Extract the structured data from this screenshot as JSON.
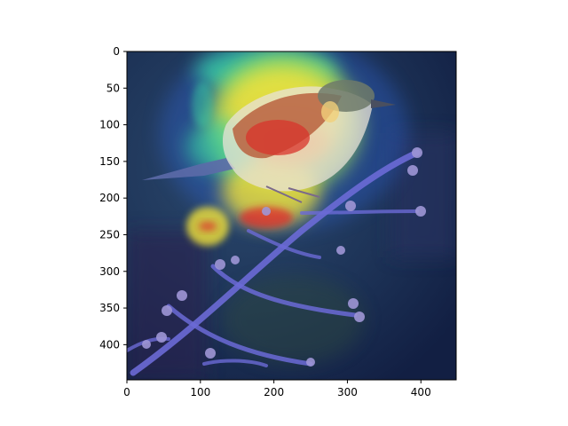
{
  "figure": {
    "kind": "image-with-heatmap-overlay",
    "image_subject": "songbird perched on a conifer branch",
    "colormap": "jet",
    "x_ticks": [
      "0",
      "100",
      "200",
      "300",
      "400"
    ],
    "y_ticks": [
      "0",
      "50",
      "100",
      "150",
      "200",
      "250",
      "300",
      "350",
      "400"
    ],
    "x_range": [
      0,
      448
    ],
    "y_range": [
      0,
      448
    ],
    "colors": {
      "background": "#1b2a4f",
      "branch": "#6b6ad6",
      "bird_back": "#b9623e",
      "bird_belly": "#e8e2d8",
      "heat_hot": "#e0252a",
      "heat_warm": "#f2e23a",
      "heat_mid": "#39d9a7",
      "heat_cool": "#2f63d6"
    }
  }
}
